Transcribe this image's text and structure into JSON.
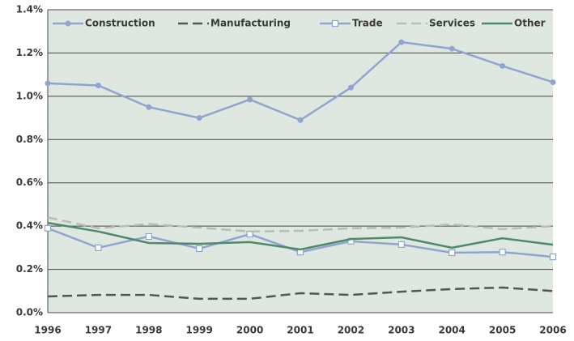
{
  "chart_data": {
    "type": "line",
    "categories": [
      "1996",
      "1997",
      "1998",
      "1999",
      "2000",
      "2001",
      "2002",
      "2003",
      "2004",
      "2005",
      "2006"
    ],
    "series": [
      {
        "name": "Construction",
        "color": "#8fa5cf",
        "marker": "circle",
        "dash": false,
        "values": [
          1.06,
          1.05,
          0.95,
          0.9,
          0.985,
          0.89,
          1.04,
          1.25,
          1.22,
          1.14,
          1.065
        ]
      },
      {
        "name": "Manufacturing",
        "color": "#555555",
        "dash": true,
        "values": [
          0.075,
          0.082,
          0.082,
          0.064,
          0.064,
          0.09,
          0.082,
          0.097,
          0.109,
          0.116,
          0.1
        ]
      },
      {
        "name": "Trade",
        "color": "#8fa5cf",
        "marker": "square",
        "dash": false,
        "values": [
          0.39,
          0.3,
          0.352,
          0.296,
          0.363,
          0.28,
          0.33,
          0.315,
          0.277,
          0.28,
          0.258
        ]
      },
      {
        "name": "Services",
        "color": "#bbbbbb",
        "dash": true,
        "values": [
          0.44,
          0.39,
          0.41,
          0.393,
          0.375,
          0.378,
          0.39,
          0.393,
          0.408,
          0.386,
          0.4
        ]
      },
      {
        "name": "Other",
        "color": "#4e8a6a",
        "dash": false,
        "values": [
          0.415,
          0.375,
          0.322,
          0.318,
          0.326,
          0.292,
          0.34,
          0.348,
          0.3,
          0.344,
          0.314
        ]
      }
    ],
    "ylim": [
      0,
      1.4
    ],
    "yticks": [
      {
        "value": 0,
        "label": "0.0%"
      },
      {
        "value": 0.2,
        "label": "0.2%"
      },
      {
        "value": 0.4,
        "label": "0.4%"
      },
      {
        "value": 0.6,
        "label": "0.6%"
      },
      {
        "value": 0.8,
        "label": "0.8%"
      },
      {
        "value": 1.0,
        "label": "1.0%"
      },
      {
        "value": 1.2,
        "label": "1.2%"
      },
      {
        "value": 1.4,
        "label": "1.4%"
      }
    ],
    "grid": true,
    "legend": "top",
    "background": "#dfe8e0"
  }
}
